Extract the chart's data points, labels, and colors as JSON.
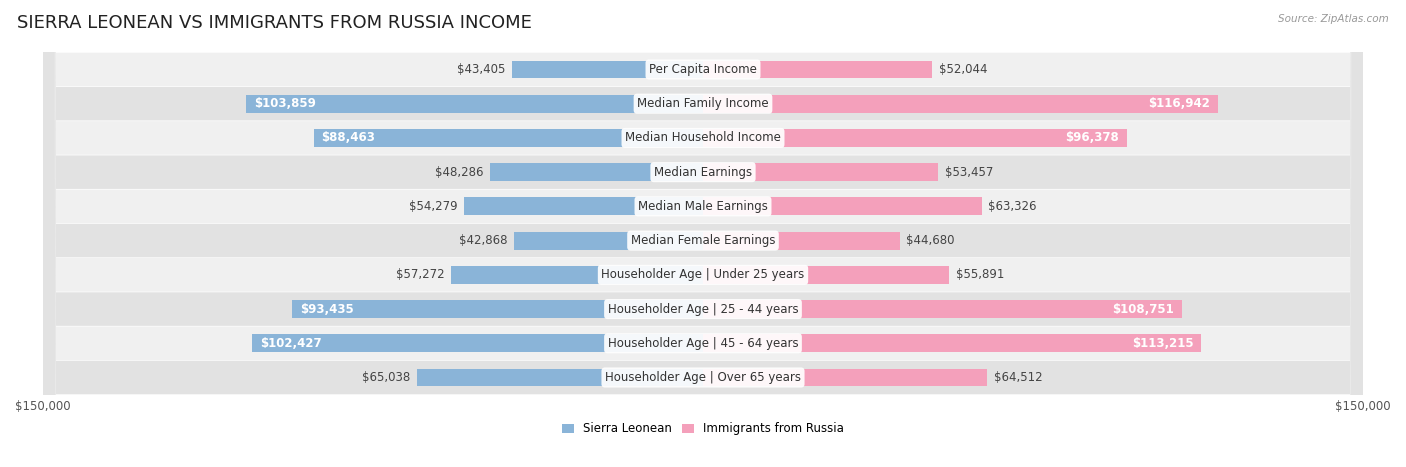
{
  "title": "SIERRA LEONEAN VS IMMIGRANTS FROM RUSSIA INCOME",
  "source": "Source: ZipAtlas.com",
  "categories": [
    "Per Capita Income",
    "Median Family Income",
    "Median Household Income",
    "Median Earnings",
    "Median Male Earnings",
    "Median Female Earnings",
    "Householder Age | Under 25 years",
    "Householder Age | 25 - 44 years",
    "Householder Age | 45 - 64 years",
    "Householder Age | Over 65 years"
  ],
  "sierra_leonean": [
    43405,
    103859,
    88463,
    48286,
    54279,
    42868,
    57272,
    93435,
    102427,
    65038
  ],
  "russia": [
    52044,
    116942,
    96378,
    53457,
    63326,
    44680,
    55891,
    108751,
    113215,
    64512
  ],
  "sierra_color": "#8ab4d8",
  "russia_color": "#f4a0bb",
  "sierra_label": "Sierra Leonean",
  "russia_label": "Immigrants from Russia",
  "bar_height": 0.52,
  "row_bg_colors": [
    "#f0f0f0",
    "#e2e2e2"
  ],
  "max_val": 150000,
  "title_fontsize": 13,
  "label_fontsize": 8.5,
  "value_fontsize": 8.5,
  "axis_fontsize": 8.5,
  "inside_threshold": 70000
}
